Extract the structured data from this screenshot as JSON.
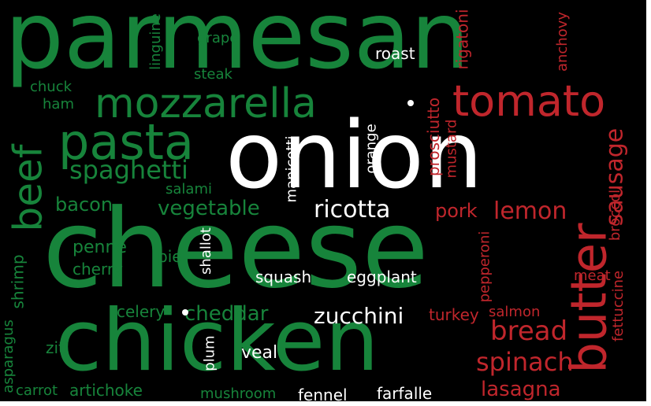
{
  "colors": {
    "green": "#17843b",
    "red": "#c0262c",
    "white": "#ffffff",
    "background": "#000000"
  },
  "words": [
    {
      "text": "parmesan",
      "color": "green"
    },
    {
      "text": "cheese",
      "color": "green"
    },
    {
      "text": "onion",
      "color": "white"
    },
    {
      "text": "chicken",
      "color": "green"
    },
    {
      "text": "mozzarella",
      "color": "green"
    },
    {
      "text": "tomato",
      "color": "red"
    },
    {
      "text": "pasta",
      "color": "green"
    },
    {
      "text": "butter",
      "color": "red"
    },
    {
      "text": "beef",
      "color": "green"
    },
    {
      "text": "spaghetti",
      "color": "green"
    },
    {
      "text": "ricotta",
      "color": "white"
    },
    {
      "text": "lemon",
      "color": "red"
    },
    {
      "text": "sausage",
      "color": "red"
    },
    {
      "text": "vegetable",
      "color": "green"
    },
    {
      "text": "bacon",
      "color": "green"
    },
    {
      "text": "pork",
      "color": "red"
    },
    {
      "text": "bread",
      "color": "red"
    },
    {
      "text": "spinach",
      "color": "red"
    },
    {
      "text": "lasagna",
      "color": "red"
    },
    {
      "text": "zucchini",
      "color": "white"
    },
    {
      "text": "cheddar",
      "color": "green"
    },
    {
      "text": "roast",
      "color": "white"
    },
    {
      "text": "grape",
      "color": "green"
    },
    {
      "text": "steak",
      "color": "green"
    },
    {
      "text": "linguine",
      "color": "green"
    },
    {
      "text": "chuck",
      "color": "green"
    },
    {
      "text": "ham",
      "color": "green"
    },
    {
      "text": "rigatoni",
      "color": "red"
    },
    {
      "text": "anchovy",
      "color": "red"
    },
    {
      "text": "prosciutto",
      "color": "red"
    },
    {
      "text": "mustard",
      "color": "red"
    },
    {
      "text": "orange",
      "color": "white"
    },
    {
      "text": "manicotti",
      "color": "white"
    },
    {
      "text": "broccoli",
      "color": "red"
    },
    {
      "text": "salami",
      "color": "green"
    },
    {
      "text": "penne",
      "color": "green"
    },
    {
      "text": "pie",
      "color": "green"
    },
    {
      "text": "cherry",
      "color": "green"
    },
    {
      "text": "shrimp",
      "color": "green"
    },
    {
      "text": "shallot",
      "color": "white"
    },
    {
      "text": "squash",
      "color": "white"
    },
    {
      "text": "eggplant",
      "color": "white"
    },
    {
      "text": "pepperoni",
      "color": "red"
    },
    {
      "text": "meat",
      "color": "red"
    },
    {
      "text": "fettuccine",
      "color": "red"
    },
    {
      "text": "celery",
      "color": "green"
    },
    {
      "text": "turkey",
      "color": "red"
    },
    {
      "text": "salmon",
      "color": "red"
    },
    {
      "text": "asparagus",
      "color": "green"
    },
    {
      "text": "ziti",
      "color": "green"
    },
    {
      "text": "plum",
      "color": "white"
    },
    {
      "text": "veal",
      "color": "white"
    },
    {
      "text": "carrot",
      "color": "green"
    },
    {
      "text": "artichoke",
      "color": "green"
    },
    {
      "text": "mushroom",
      "color": "green"
    },
    {
      "text": "fennel",
      "color": "white"
    },
    {
      "text": "farfalle",
      "color": "white"
    }
  ]
}
